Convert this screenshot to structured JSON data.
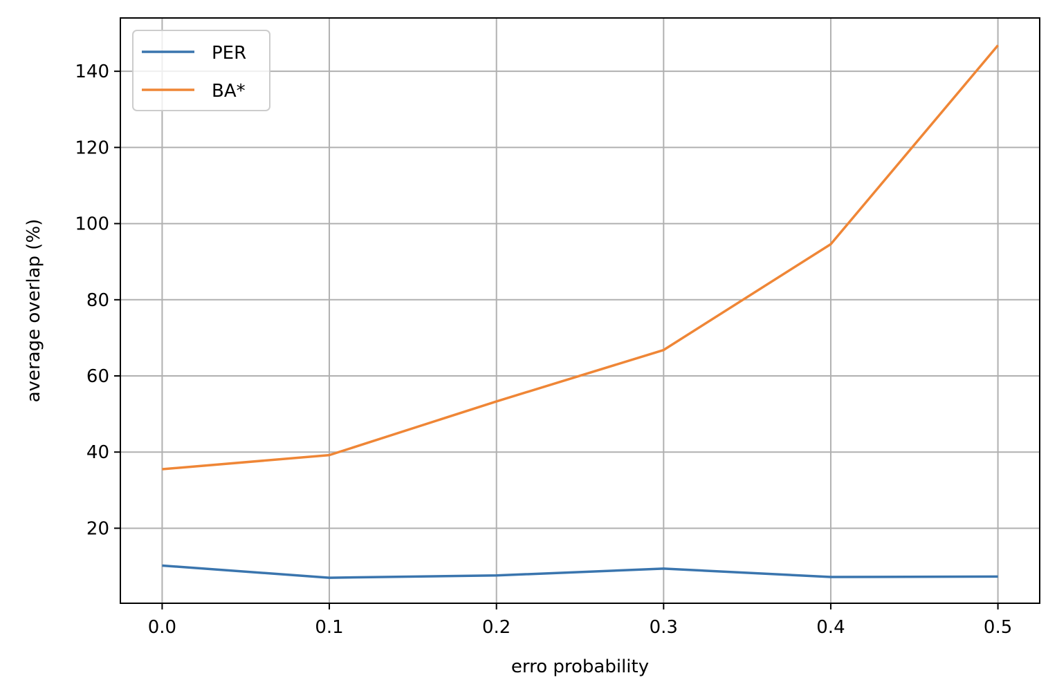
{
  "chart_data": {
    "type": "line",
    "title": "",
    "xlabel": "erro probability",
    "ylabel": "average overlap (%)",
    "x": [
      0.0,
      0.1,
      0.2,
      0.3,
      0.4,
      0.5
    ],
    "xlim": [
      -0.025,
      0.525
    ],
    "ylim": [
      0.3,
      154
    ],
    "xticks": [
      0.0,
      0.1,
      0.2,
      0.3,
      0.4,
      0.5
    ],
    "xtick_labels": [
      "0.0",
      "0.1",
      "0.2",
      "0.3",
      "0.4",
      "0.5"
    ],
    "yticks": [
      20,
      40,
      60,
      80,
      100,
      120,
      140
    ],
    "ytick_labels": [
      "20",
      "40",
      "60",
      "80",
      "100",
      "120",
      "140"
    ],
    "grid": true,
    "legend_position": "top-left",
    "series": [
      {
        "name": "PER",
        "color": "#3a75ae",
        "values": [
          10.2,
          7.0,
          7.6,
          9.4,
          7.2,
          7.3
        ]
      },
      {
        "name": "BA*",
        "color": "#ef8636",
        "values": [
          35.5,
          39.2,
          53.3,
          66.8,
          94.6,
          146.8
        ]
      }
    ]
  }
}
